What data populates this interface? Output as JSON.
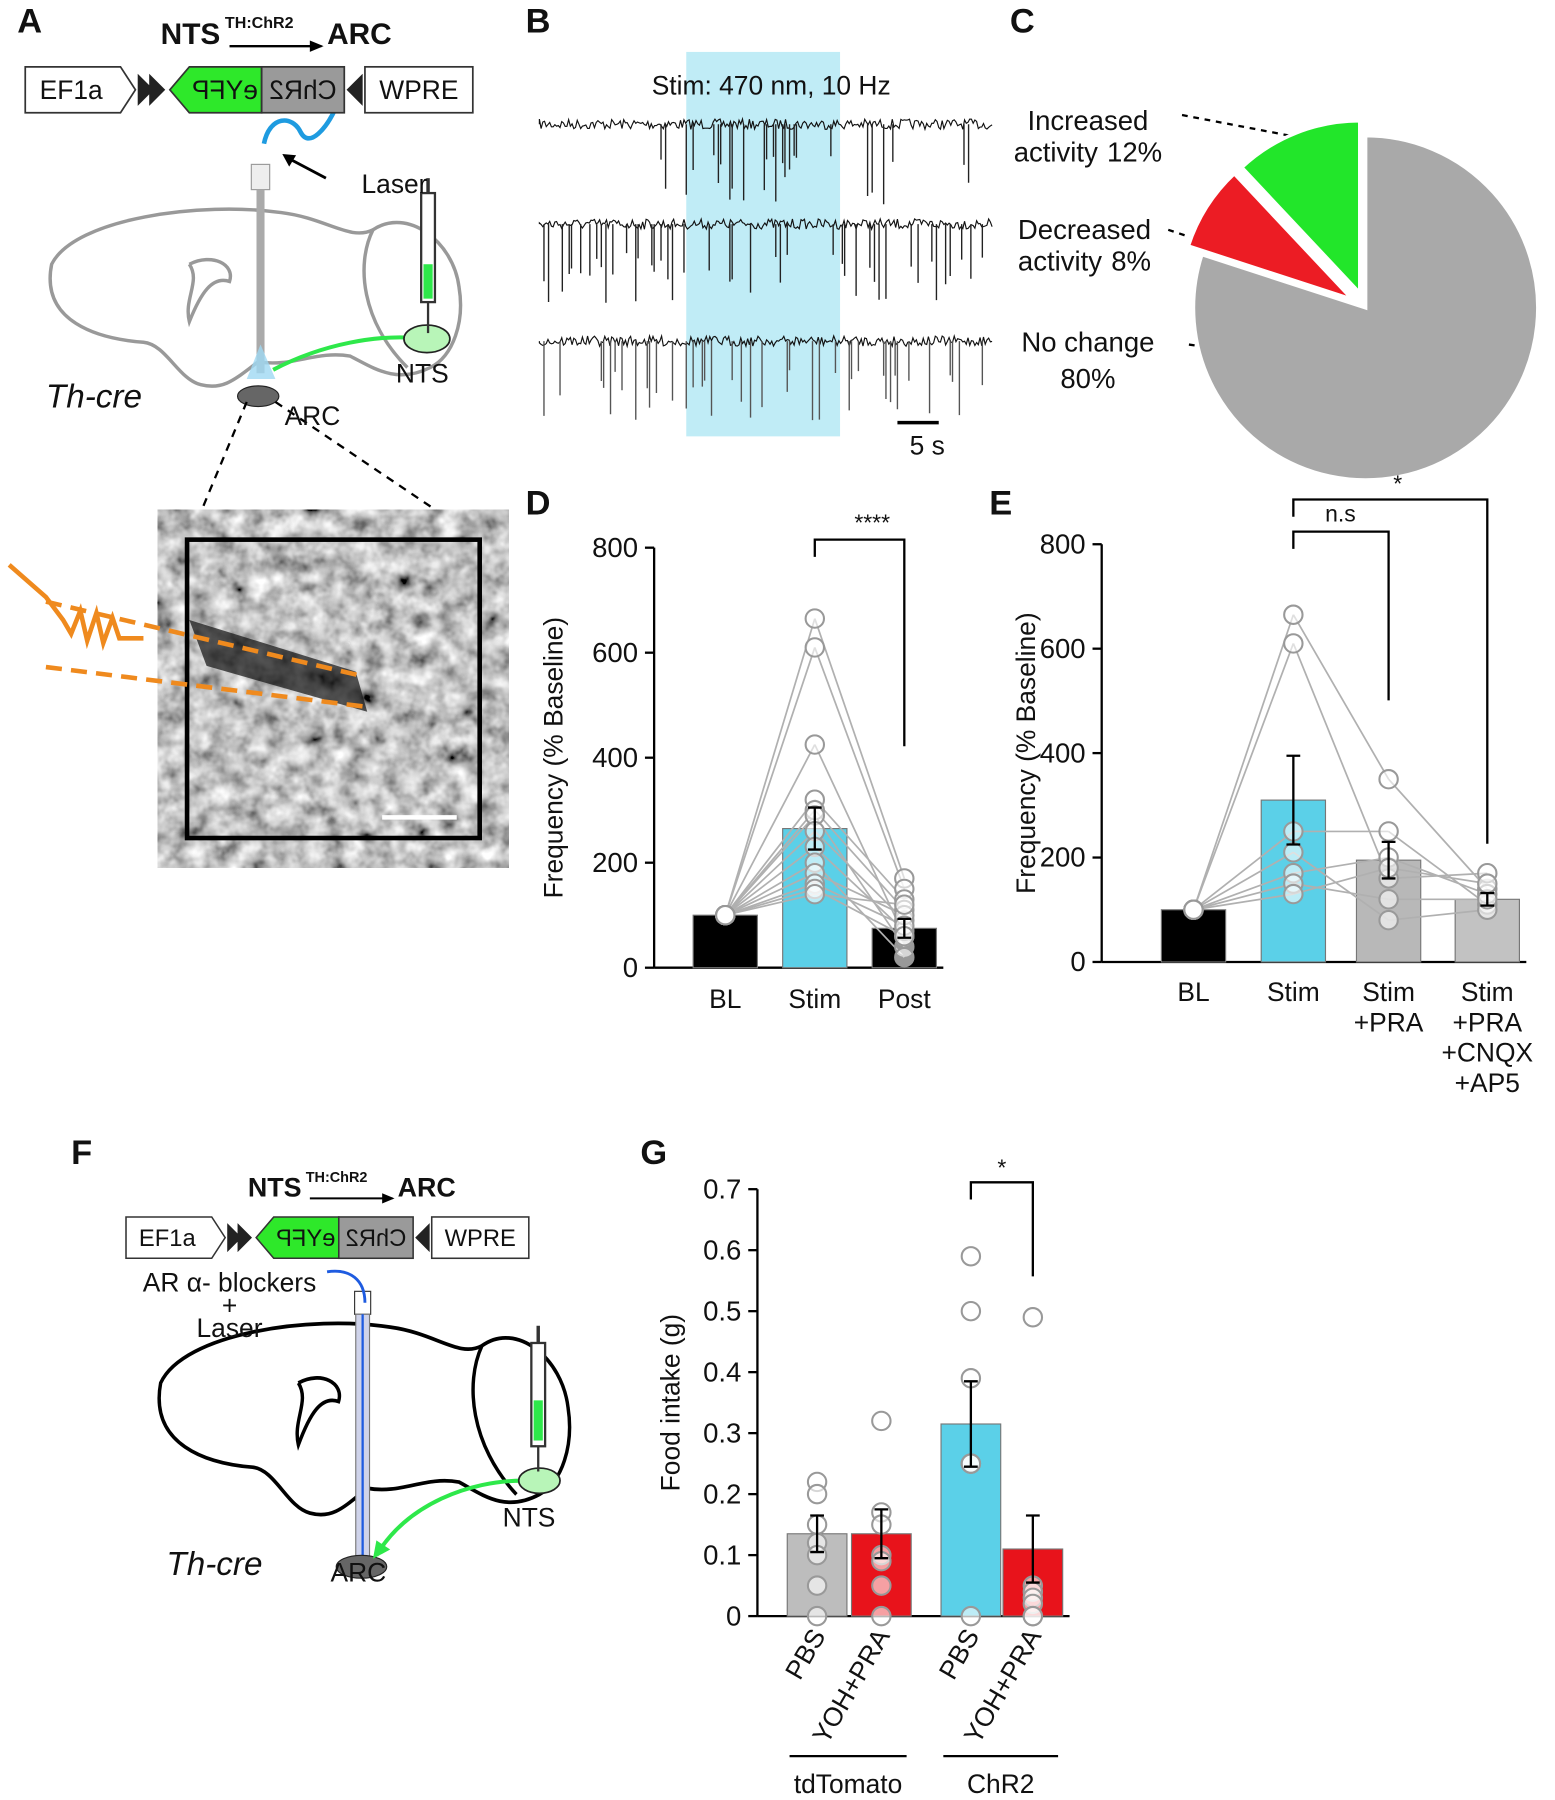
{
  "panel_labels": [
    "A",
    "B",
    "C",
    "D",
    "E",
    "F",
    "G"
  ],
  "construct_a": {
    "title": "NTS",
    "superscript": "TH:ChR2",
    "target": "ARC",
    "elements": [
      "EF1a",
      "eYFP",
      "ChR2",
      "WPRE"
    ]
  },
  "diagram_a": {
    "laser": "Laser",
    "strain": "Th-cre",
    "nts": "NTS",
    "arc": "ARC"
  },
  "traces": {
    "stim_label": "Stim: 470 nm, 10 Hz",
    "scale_bar": "5 s"
  },
  "construct_f": {
    "title": "NTS",
    "superscript": "TH:ChR2",
    "target": "ARC",
    "elements": [
      "EF1a",
      "eYFP",
      "ChR2",
      "WPRE"
    ]
  },
  "diagram_f": {
    "infusion": "AR α- blockers",
    "plus": "+",
    "laser": "Laser",
    "strain": "Th-cre",
    "nts": "NTS",
    "arc": "ARC"
  },
  "chart_data": [
    {
      "type": "pie",
      "categories": [
        "Increased\nactivity",
        "Decreased\nactivity",
        "No change"
      ],
      "values": [
        12,
        8,
        80
      ],
      "value_labels": [
        "12%",
        "8%",
        "80%"
      ],
      "colors": [
        "#22e62a",
        "#ec1c24",
        "#a9a9a9"
      ],
      "explode": [
        true,
        true,
        false
      ]
    },
    {
      "type": "bar",
      "categories": [
        "BL",
        "Stim",
        "Post"
      ],
      "values": [
        100,
        265,
        75
      ],
      "errors": [
        null,
        40,
        18
      ],
      "colors": [
        "#000000",
        "#5bd0e8",
        "#000000"
      ],
      "points": [
        [
          100,
          100,
          100,
          100,
          100,
          100,
          100,
          100,
          100,
          100,
          100,
          100,
          100
        ],
        [
          665,
          610,
          425,
          320,
          300,
          290,
          260,
          230,
          200,
          180,
          160,
          150,
          140
        ],
        [
          170,
          150,
          60,
          130,
          110,
          40,
          90,
          70,
          20,
          100,
          80,
          60,
          120
        ]
      ],
      "paired": true,
      "ylabel": "Frequency (% Baseline)",
      "ylim": [
        0,
        800
      ],
      "yticks": [
        0,
        200,
        400,
        600,
        800
      ],
      "annotations": [
        "****"
      ]
    },
    {
      "type": "bar",
      "categories": [
        "BL",
        "Stim",
        "Stim\n+PRA",
        "Stim\n+PRA\n+CNQX\n+AP5"
      ],
      "values": [
        100,
        310,
        195,
        120
      ],
      "errors": [
        null,
        85,
        35,
        12
      ],
      "colors": [
        "#000000",
        "#5bd0e8",
        "#b8b8b8",
        "#c2c2c2"
      ],
      "points": [
        [
          100,
          100,
          100,
          100,
          100,
          100,
          100
        ],
        [
          665,
          610,
          250,
          210,
          170,
          150,
          130
        ],
        [
          350,
          160,
          250,
          80,
          200,
          120,
          180
        ],
        [
          140,
          170,
          110,
          100,
          130,
          120,
          150
        ]
      ],
      "paired": true,
      "ylabel": "Frequency (% Baseline)",
      "ylim": [
        0,
        800
      ],
      "yticks": [
        0,
        200,
        400,
        600,
        800
      ],
      "annotations": [
        "n.s",
        "*"
      ]
    },
    {
      "type": "bar",
      "categories": [
        "PBS",
        "YOH+PRA",
        "PBS",
        "YOH+PRA"
      ],
      "groups": [
        "tdTomato",
        "ChR2"
      ],
      "values": [
        0.135,
        0.135,
        0.315,
        0.11
      ],
      "errors": [
        0.03,
        0.04,
        0.07,
        0.055
      ],
      "colors": [
        "#bdbdbd",
        "#e8131b",
        "#5bd0e8",
        "#e8131b"
      ],
      "points": [
        [
          0.22,
          0.2,
          0.15,
          0.12,
          0.1,
          0.05,
          0
        ],
        [
          0.32,
          0.17,
          0.15,
          0.1,
          0.09,
          0.05,
          0
        ],
        [
          0.59,
          0.5,
          0.39,
          0.25,
          0.25,
          0.25,
          0
        ],
        [
          0.49,
          0.05,
          0.04,
          0.03,
          0.02,
          0,
          0
        ]
      ],
      "paired": false,
      "ylabel": "Food intake (g)",
      "ylim": [
        0,
        0.7
      ],
      "yticks": [
        0,
        0.1,
        0.2,
        0.3,
        0.4,
        0.5,
        0.6,
        0.7
      ],
      "annotations": [
        "*"
      ]
    }
  ]
}
